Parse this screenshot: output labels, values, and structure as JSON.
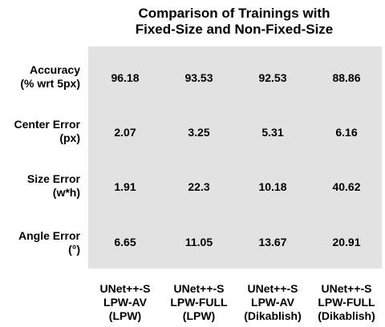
{
  "chart_data": {
    "type": "heatmap",
    "title_line1": "Comparison of Trainings with",
    "title_line2": "Fixed-Size and Non-Fixed-Size",
    "rows": [
      {
        "line1": "Accuracy",
        "line2": "(% wrt 5px)"
      },
      {
        "line1": "Center Error",
        "line2": "(px)"
      },
      {
        "line1": "Size Error",
        "line2": "(w*h)"
      },
      {
        "line1": "Angle Error",
        "line2": "(°)"
      }
    ],
    "columns": [
      {
        "line1": "UNet++-S",
        "line2": "LPW-AV",
        "line3": "(LPW)"
      },
      {
        "line1": "UNet++-S",
        "line2": "LPW-FULL",
        "line3": "(LPW)"
      },
      {
        "line1": "UNet++-S",
        "line2": "LPW-AV",
        "line3": "(Dikablish)"
      },
      {
        "line1": "UNet++-S",
        "line2": "LPW-FULL",
        "line3": "(Dikablish)"
      }
    ],
    "values": [
      [
        "96.18",
        "93.53",
        "92.53",
        "88.86"
      ],
      [
        "2.07",
        "3.25",
        "5.31",
        "6.16"
      ],
      [
        "1.91",
        "22.3",
        "10.18",
        "40.62"
      ],
      [
        "6.65",
        "11.05",
        "13.67",
        "20.91"
      ]
    ],
    "cell_color": "#e2e2e2"
  }
}
